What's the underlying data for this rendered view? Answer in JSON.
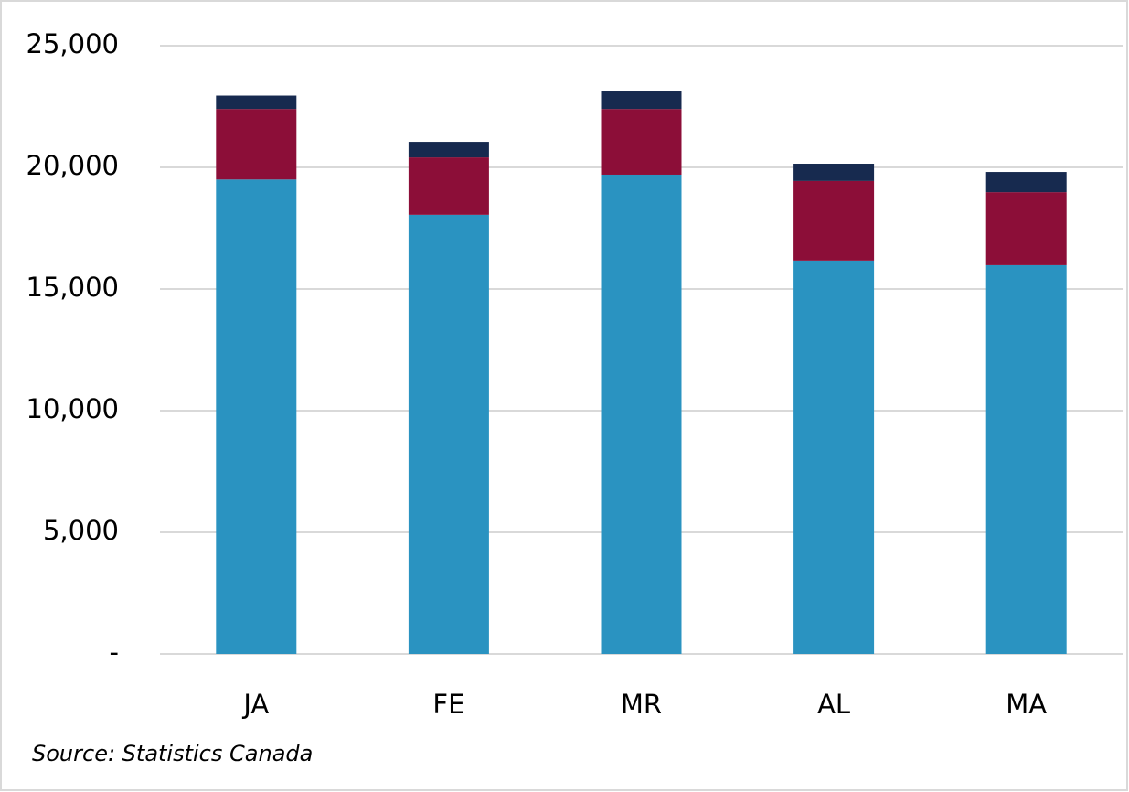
{
  "chart_data": {
    "type": "stacked_bar",
    "categories": [
      "JA",
      "FE",
      "MR",
      "AL",
      "MA"
    ],
    "series": [
      {
        "color": "#2a93c1",
        "values": [
          19500,
          18050,
          19700,
          16170,
          15980
        ]
      },
      {
        "color": "#8c0e38",
        "values": [
          2900,
          2360,
          2700,
          3270,
          3000
        ]
      },
      {
        "color": "#172a4f",
        "values": [
          550,
          640,
          720,
          710,
          830
        ]
      }
    ],
    "ylim": [
      0,
      25000
    ],
    "yticks": [
      {
        "value": 0,
        "label": "-"
      },
      {
        "value": 5000,
        "label": "5,000"
      },
      {
        "value": 10000,
        "label": "10,000"
      },
      {
        "value": 15000,
        "label": "15,000"
      },
      {
        "value": 20000,
        "label": "20,000"
      },
      {
        "value": 25000,
        "label": "25,000"
      }
    ],
    "grid": true,
    "note": "Source: Statistics Canada"
  }
}
